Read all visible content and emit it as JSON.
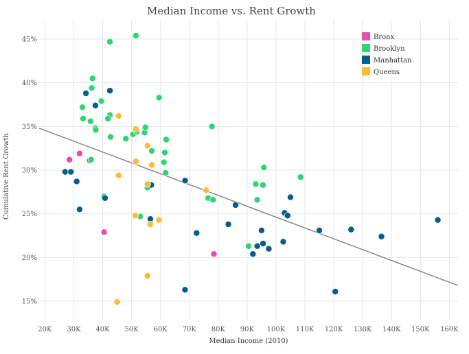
{
  "chart_data": {
    "type": "scatter",
    "title": "Median Income vs. Rent Growth",
    "xlabel": "Median Income (2010)",
    "ylabel": "Cumulative Rent Growth",
    "xlim": [
      18,
      163
    ],
    "ylim": [
      12.8,
      47.2
    ],
    "x_ticks": [
      20,
      30,
      40,
      50,
      60,
      70,
      80,
      90,
      100,
      110,
      120,
      130,
      140,
      150,
      160
    ],
    "x_tick_labels": [
      "20K",
      "30K",
      "40K",
      "50K",
      "60K",
      "70K",
      "80K",
      "90K",
      "100K",
      "110K",
      "120K",
      "130K",
      "140K",
      "150K",
      "160K"
    ],
    "y_ticks": [
      15,
      20,
      25,
      30,
      35,
      40,
      45
    ],
    "y_tick_labels": [
      "15%",
      "20%",
      "25%",
      "30%",
      "35%",
      "40%",
      "45%"
    ],
    "grid": true,
    "legend_position": "top-right",
    "trendline": {
      "color": "#8c8c8c",
      "points": [
        [
          18,
          34.8
        ],
        [
          163,
          16.8
        ]
      ]
    },
    "series": [
      {
        "name": "Bronx",
        "color": "#e64ea9",
        "points": [
          [
            28.5,
            31.2
          ],
          [
            32.0,
            31.9
          ],
          [
            35.5,
            31.1
          ],
          [
            40.5,
            22.9
          ],
          [
            78.5,
            20.4
          ]
        ]
      },
      {
        "name": "Brooklyn",
        "color": "#2ed572",
        "points": [
          [
            42.5,
            44.7
          ],
          [
            51.5,
            45.4
          ],
          [
            36.5,
            40.5
          ],
          [
            36.2,
            39.4
          ],
          [
            33.0,
            37.2
          ],
          [
            39.5,
            37.9
          ],
          [
            42.5,
            36.3
          ],
          [
            41.8,
            35.9
          ],
          [
            33.2,
            35.9
          ],
          [
            35.8,
            35.6
          ],
          [
            37.5,
            34.8
          ],
          [
            37.6,
            34.6
          ],
          [
            42.7,
            33.8
          ],
          [
            48.0,
            33.6
          ],
          [
            50.5,
            34.1
          ],
          [
            51.8,
            34.4
          ],
          [
            54.5,
            34.3
          ],
          [
            54.8,
            34.9
          ],
          [
            59.5,
            38.3
          ],
          [
            57.0,
            32.2
          ],
          [
            61.5,
            32.0
          ],
          [
            62.0,
            33.5
          ],
          [
            61.2,
            30.9
          ],
          [
            61.8,
            29.7
          ],
          [
            55.8,
            28.2
          ],
          [
            55.5,
            28.0
          ],
          [
            36.0,
            31.2
          ],
          [
            40.5,
            27.0
          ],
          [
            53.0,
            24.7
          ],
          [
            76.5,
            26.8
          ],
          [
            78.2,
            26.6
          ],
          [
            77.8,
            35.0
          ],
          [
            90.5,
            21.3
          ],
          [
            93.0,
            28.4
          ],
          [
            93.5,
            26.6
          ],
          [
            95.5,
            28.3
          ],
          [
            95.8,
            30.3
          ],
          [
            108.5,
            29.2
          ]
        ]
      },
      {
        "name": "Manhattan",
        "color": "#045d91",
        "points": [
          [
            27.0,
            29.8
          ],
          [
            29.0,
            29.8
          ],
          [
            31.0,
            28.7
          ],
          [
            32.0,
            25.5
          ],
          [
            34.2,
            38.8
          ],
          [
            37.5,
            37.4
          ],
          [
            42.5,
            39.1
          ],
          [
            40.8,
            26.8
          ],
          [
            56.8,
            28.3
          ],
          [
            56.5,
            24.4
          ],
          [
            68.5,
            28.8
          ],
          [
            72.5,
            22.8
          ],
          [
            68.5,
            16.3
          ],
          [
            83.5,
            23.8
          ],
          [
            86.0,
            26.0
          ],
          [
            92.0,
            20.4
          ],
          [
            93.5,
            21.3
          ],
          [
            95.0,
            23.1
          ],
          [
            95.5,
            21.6
          ],
          [
            97.5,
            21.0
          ],
          [
            102.5,
            21.8
          ],
          [
            103.0,
            25.1
          ],
          [
            104.0,
            24.8
          ],
          [
            105.0,
            26.9
          ],
          [
            115.0,
            23.1
          ],
          [
            120.5,
            16.1
          ],
          [
            126.0,
            23.2
          ],
          [
            136.5,
            22.4
          ],
          [
            156.0,
            24.3
          ]
        ]
      },
      {
        "name": "Queens",
        "color": "#fcbc39",
        "points": [
          [
            45.5,
            36.2
          ],
          [
            51.5,
            34.7
          ],
          [
            55.5,
            32.8
          ],
          [
            51.5,
            31.0
          ],
          [
            57.0,
            30.6
          ],
          [
            45.5,
            29.4
          ],
          [
            55.5,
            28.4
          ],
          [
            51.3,
            24.8
          ],
          [
            59.5,
            24.3
          ],
          [
            56.5,
            23.8
          ],
          [
            55.5,
            17.9
          ],
          [
            45.0,
            14.9
          ],
          [
            75.8,
            27.7
          ]
        ]
      }
    ]
  }
}
